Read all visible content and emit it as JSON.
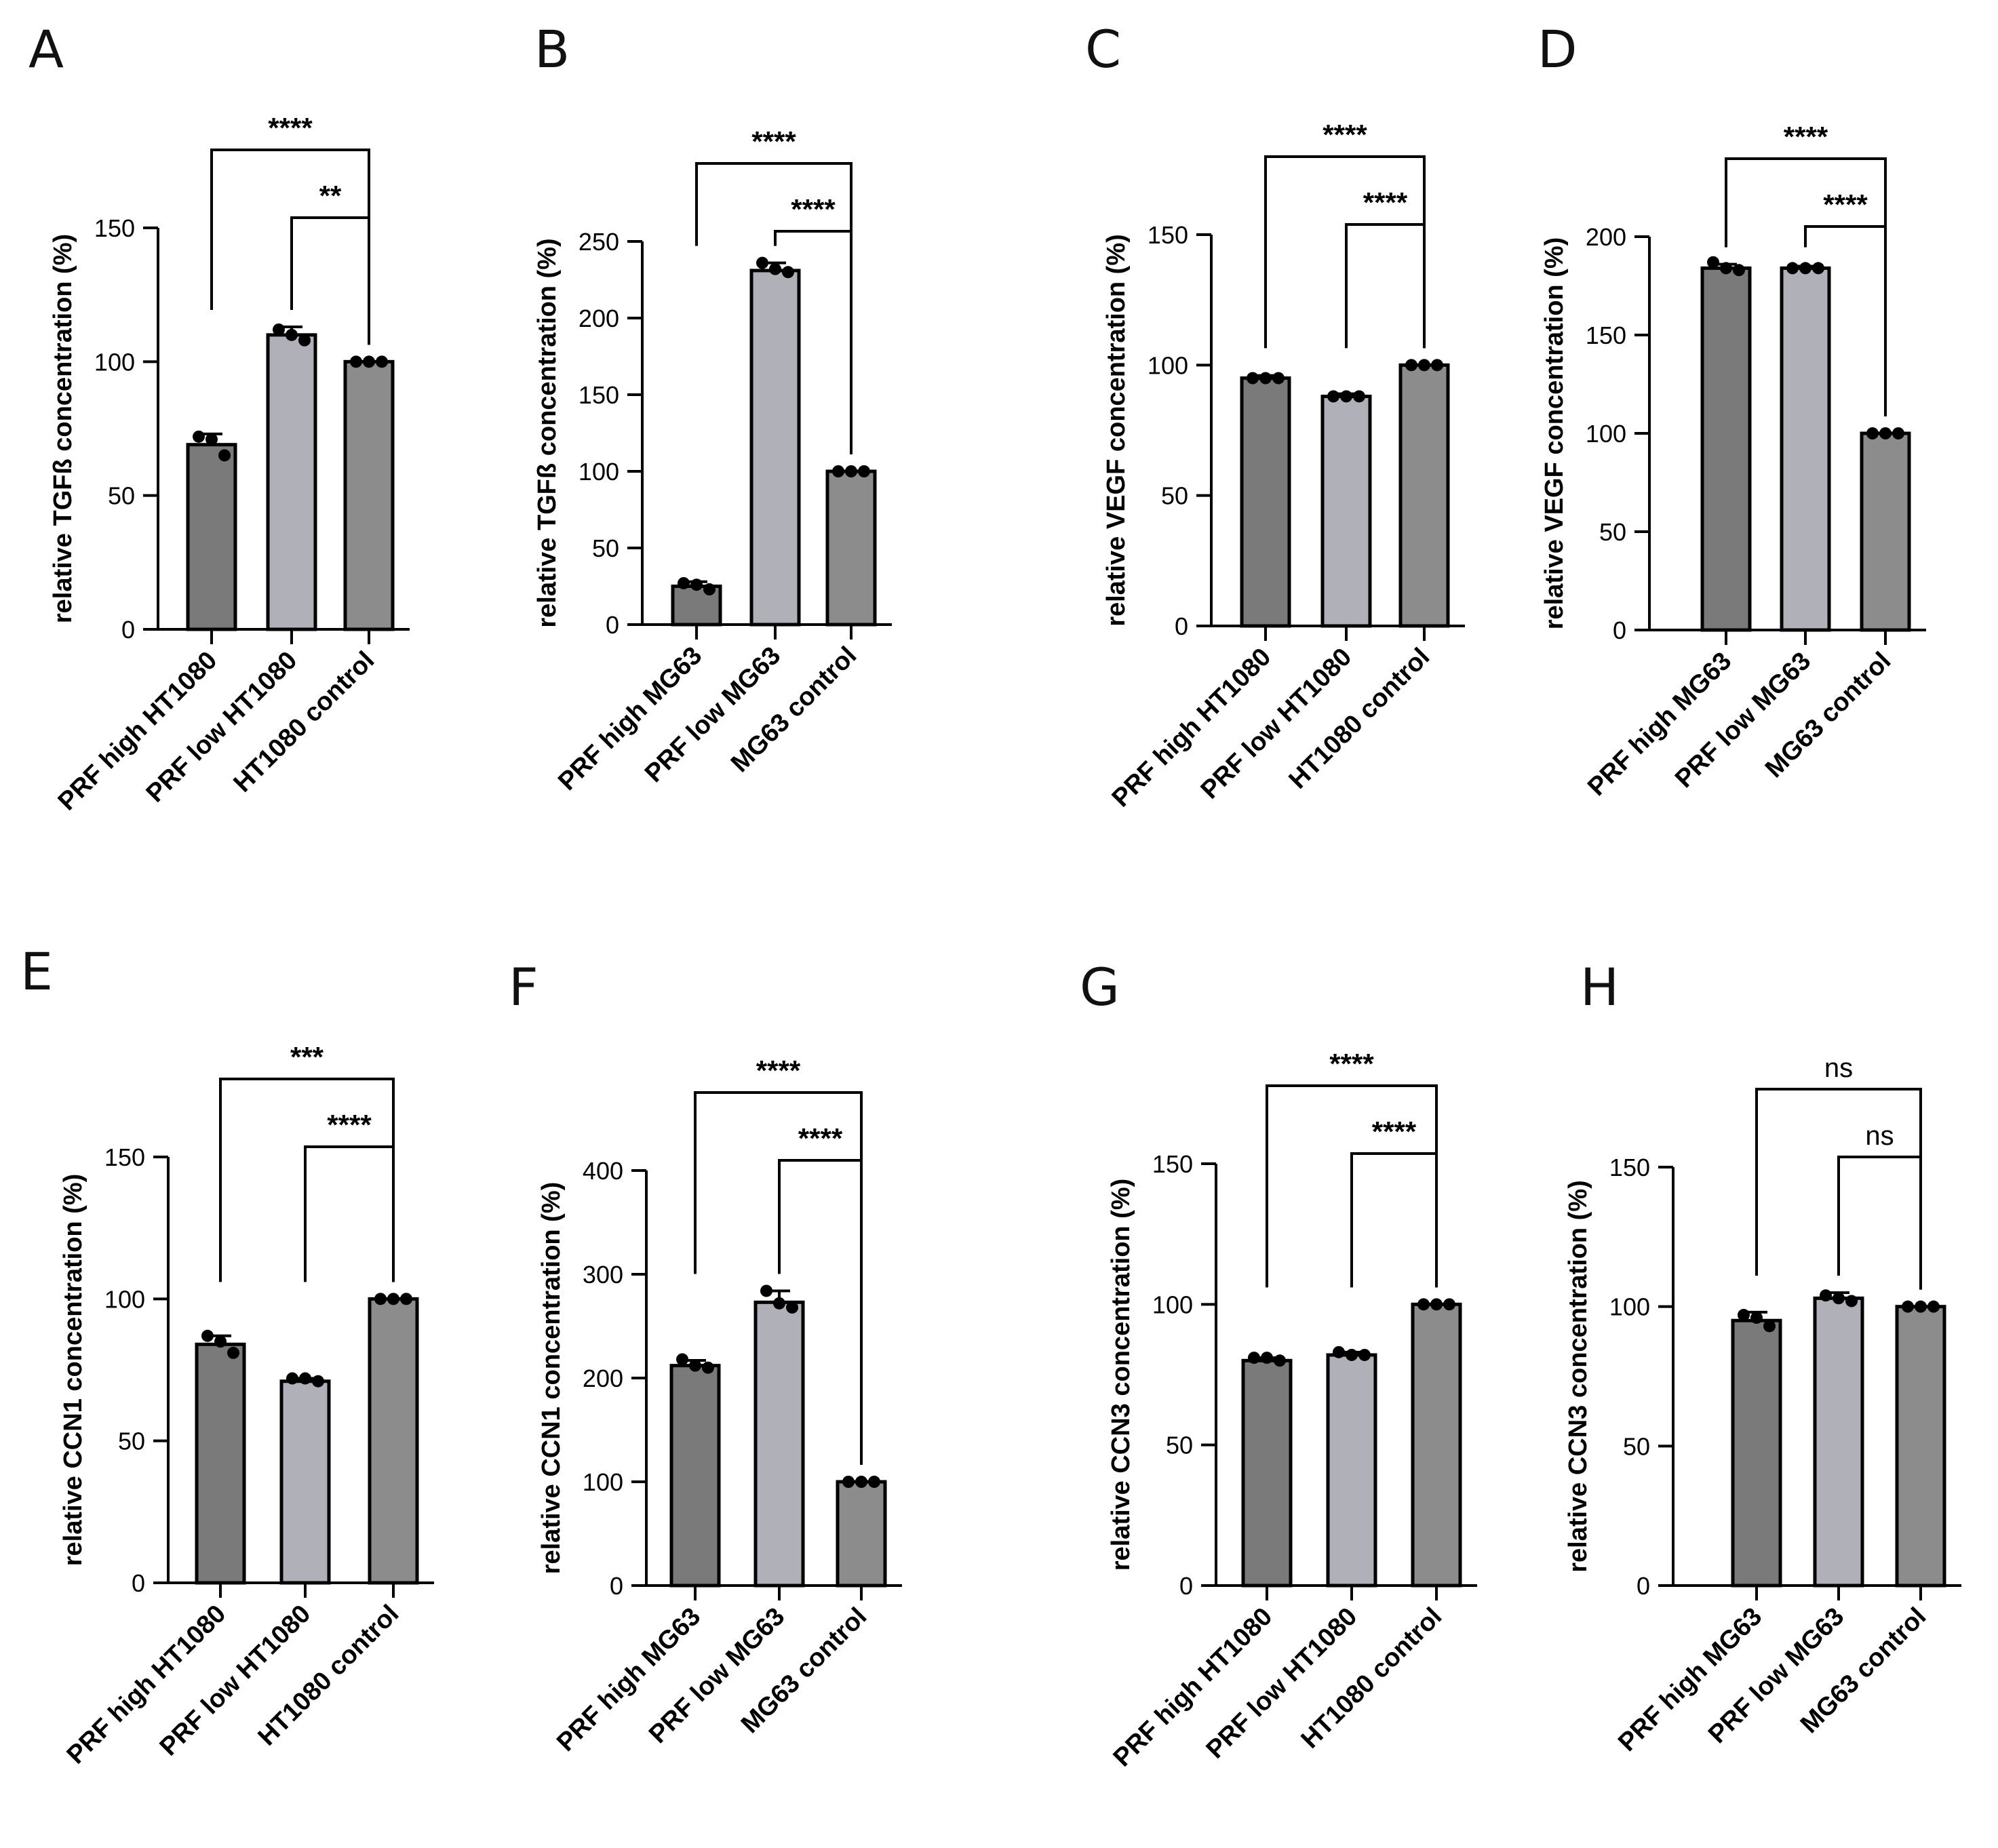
{
  "figure": {
    "colors": {
      "high": "#7a7a7a",
      "low": "#b0b0b8",
      "control": "#8c8c8c",
      "ink": "#000000"
    }
  },
  "chart_data": [
    {
      "panel": "A",
      "type": "bar",
      "categories": [
        "PRF high HT1080",
        "PRF low HT1080",
        "HT1080 control"
      ],
      "values": [
        69,
        110,
        100
      ],
      "errors": [
        4,
        3,
        0
      ],
      "points": [
        [
          72,
          71,
          65
        ],
        [
          112,
          110,
          108
        ],
        [
          100,
          100,
          100
        ]
      ],
      "ylabel": "relative TGFß concentration (%)",
      "ylim": [
        0,
        150
      ],
      "yticks": [
        0,
        50,
        100,
        150
      ],
      "brackets": [
        {
          "from": 0,
          "to": 2,
          "label": "****",
          "level": 2
        },
        {
          "from": 1,
          "to": 2,
          "label": "**",
          "level": 1
        }
      ]
    },
    {
      "panel": "B",
      "type": "bar",
      "categories": [
        "PRF high MG63",
        "PRF low MG63",
        "MG63 control"
      ],
      "values": [
        25,
        231,
        100
      ],
      "errors": [
        3,
        5,
        0
      ],
      "points": [
        [
          27,
          26,
          23
        ],
        [
          236,
          232,
          230
        ],
        [
          100,
          100,
          100
        ]
      ],
      "ylabel": "relative TGFß concentration (%)",
      "ylim": [
        0,
        250
      ],
      "yticks": [
        0,
        50,
        100,
        150,
        200,
        250
      ],
      "brackets": [
        {
          "from": 0,
          "to": 2,
          "label": "****",
          "level": 2
        },
        {
          "from": 1,
          "to": 2,
          "label": "****",
          "level": 1
        }
      ]
    },
    {
      "panel": "C",
      "type": "bar",
      "categories": [
        "PRF high HT1080",
        "PRF low HT1080",
        "HT1080 control"
      ],
      "values": [
        95,
        88,
        100
      ],
      "errors": [
        1,
        1,
        0
      ],
      "points": [
        [
          95,
          95,
          95
        ],
        [
          88,
          88,
          88
        ],
        [
          100,
          100,
          100
        ]
      ],
      "ylabel": "relative VEGF concentration (%)",
      "ylim": [
        0,
        150
      ],
      "yticks": [
        0,
        50,
        100,
        150
      ],
      "brackets": [
        {
          "from": 0,
          "to": 2,
          "label": "****",
          "level": 2
        },
        {
          "from": 1,
          "to": 2,
          "label": "****",
          "level": 1
        }
      ]
    },
    {
      "panel": "D",
      "type": "bar",
      "categories": [
        "PRF high MG63",
        "PRF low MG63",
        "MG63 control"
      ],
      "values": [
        184,
        184,
        100
      ],
      "errors": [
        2,
        1,
        0
      ],
      "points": [
        [
          187,
          184,
          183
        ],
        [
          184,
          184,
          184
        ],
        [
          100,
          100,
          100
        ]
      ],
      "ylabel": "relative VEGF concentration (%)",
      "ylim": [
        0,
        200
      ],
      "yticks": [
        0,
        50,
        100,
        150,
        200
      ],
      "brackets": [
        {
          "from": 0,
          "to": 2,
          "label": "****",
          "level": 2
        },
        {
          "from": 1,
          "to": 2,
          "label": "****",
          "level": 1
        }
      ]
    },
    {
      "panel": "E",
      "type": "bar",
      "categories": [
        "PRF high HT1080",
        "PRF low HT1080",
        "HT1080 control"
      ],
      "values": [
        84,
        71,
        100
      ],
      "errors": [
        3,
        1,
        0
      ],
      "points": [
        [
          87,
          85,
          81
        ],
        [
          72,
          72,
          71
        ],
        [
          100,
          100,
          100
        ]
      ],
      "ylabel": "relative CCN1 concentration (%)",
      "ylim": [
        0,
        150
      ],
      "yticks": [
        0,
        50,
        100,
        150
      ],
      "brackets": [
        {
          "from": 0,
          "to": 2,
          "label": "***",
          "level": 2
        },
        {
          "from": 1,
          "to": 2,
          "label": "****",
          "level": 1
        }
      ]
    },
    {
      "panel": "F",
      "type": "bar",
      "categories": [
        "PRF high MG63",
        "PRF low MG63",
        "MG63 control"
      ],
      "values": [
        212,
        273,
        100
      ],
      "errors": [
        5,
        11,
        0
      ],
      "points": [
        [
          218,
          212,
          210
        ],
        [
          284,
          272,
          268
        ],
        [
          100,
          100,
          100
        ]
      ],
      "ylabel": "relative CCN1 concentration (%)",
      "ylim": [
        0,
        400
      ],
      "yticks": [
        0,
        100,
        200,
        300,
        400
      ],
      "brackets": [
        {
          "from": 0,
          "to": 2,
          "label": "****",
          "level": 2
        },
        {
          "from": 1,
          "to": 2,
          "label": "****",
          "level": 1
        }
      ]
    },
    {
      "panel": "G",
      "type": "bar",
      "categories": [
        "PRF high HT1080",
        "PRF low HT1080",
        "HT1080 control"
      ],
      "values": [
        80,
        82,
        100
      ],
      "errors": [
        1,
        1,
        0
      ],
      "points": [
        [
          81,
          81,
          80
        ],
        [
          83,
          82,
          82
        ],
        [
          100,
          100,
          100
        ]
      ],
      "ylabel": "relative CCN3 concentration (%)",
      "ylim": [
        0,
        150
      ],
      "yticks": [
        0,
        50,
        100,
        150
      ],
      "brackets": [
        {
          "from": 0,
          "to": 2,
          "label": "****",
          "level": 2
        },
        {
          "from": 1,
          "to": 2,
          "label": "****",
          "level": 1
        }
      ]
    },
    {
      "panel": "H",
      "type": "bar",
      "categories": [
        "PRF high MG63",
        "PRF low MG63",
        "MG63 control"
      ],
      "values": [
        95,
        103,
        100
      ],
      "errors": [
        3,
        2,
        0
      ],
      "points": [
        [
          97,
          96,
          93
        ],
        [
          104,
          103,
          102
        ],
        [
          100,
          100,
          100
        ]
      ],
      "ylabel": "relative CCN3 concentration (%)",
      "ylim": [
        0,
        150
      ],
      "yticks": [
        0,
        50,
        100,
        150
      ],
      "brackets": [
        {
          "from": 0,
          "to": 2,
          "label": "ns",
          "level": 2
        },
        {
          "from": 1,
          "to": 2,
          "label": "ns",
          "level": 1
        }
      ]
    }
  ]
}
